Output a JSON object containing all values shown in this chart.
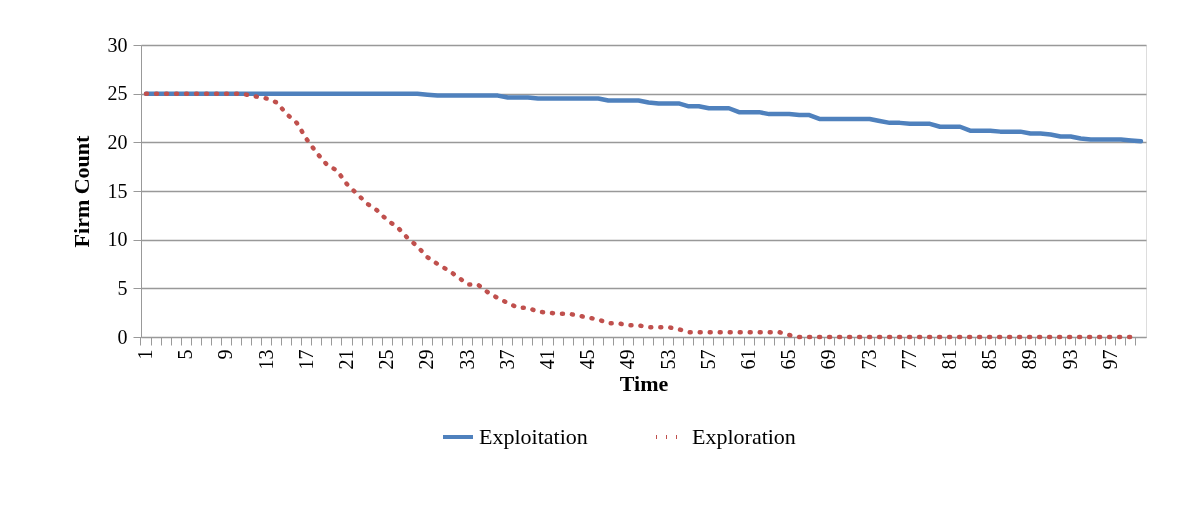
{
  "chart_data": {
    "type": "line",
    "xlabel": "Time",
    "ylabel": "Firm Count",
    "categories": [
      "1",
      null,
      null,
      null,
      "5",
      null,
      null,
      null,
      "9",
      null,
      null,
      null,
      "13",
      null,
      null,
      null,
      "17",
      null,
      null,
      null,
      "21",
      null,
      null,
      null,
      "25",
      null,
      null,
      null,
      "29",
      null,
      null,
      null,
      "33",
      null,
      null,
      null,
      "37",
      null,
      null,
      null,
      "41",
      null,
      null,
      null,
      "45",
      null,
      null,
      null,
      "49",
      null,
      null,
      null,
      "53",
      null,
      null,
      null,
      "57",
      null,
      null,
      null,
      "61",
      null,
      null,
      null,
      "65",
      null,
      null,
      null,
      "69",
      null,
      null,
      null,
      "73",
      null,
      null,
      null,
      "77",
      null,
      null,
      null,
      "81",
      null,
      null,
      null,
      "85",
      null,
      null,
      null,
      "89",
      null,
      null,
      null,
      "93",
      null,
      null,
      null,
      "97",
      null,
      null,
      null
    ],
    "series": [
      {
        "name": "Exploitation",
        "color": "#4f81bd",
        "line_style": "solid",
        "values": [
          25,
          25,
          25,
          25,
          25,
          25,
          25,
          25,
          25,
          25,
          25,
          25,
          25,
          25,
          25,
          25,
          25,
          25,
          25,
          25,
          25,
          25,
          25,
          25,
          25,
          25,
          25,
          25,
          24.9,
          24.8,
          24.8,
          24.8,
          24.8,
          24.8,
          24.8,
          24.8,
          24.6,
          24.6,
          24.6,
          24.5,
          24.5,
          24.5,
          24.5,
          24.5,
          24.5,
          24.5,
          24.3,
          24.3,
          24.3,
          24.3,
          24.1,
          24.0,
          24.0,
          24.0,
          23.7,
          23.7,
          23.5,
          23.5,
          23.5,
          23.1,
          23.1,
          23.1,
          22.9,
          22.9,
          22.9,
          22.8,
          22.8,
          22.4,
          22.4,
          22.4,
          22.4,
          22.4,
          22.4,
          22.2,
          22.0,
          22.0,
          21.9,
          21.9,
          21.9,
          21.6,
          21.6,
          21.6,
          21.2,
          21.2,
          21.2,
          21.1,
          21.1,
          21.1,
          20.9,
          20.9,
          20.8,
          20.6,
          20.6,
          20.4,
          20.3,
          20.3,
          20.3,
          20.3,
          20.2,
          20.1
        ]
      },
      {
        "name": "Exploration",
        "color": "#c0504d",
        "line_style": "dotted",
        "values": [
          25,
          25,
          25,
          25,
          25,
          25,
          25,
          25,
          25,
          25,
          24.9,
          24.7,
          24.5,
          24.1,
          22.9,
          22.0,
          20.3,
          18.9,
          17.7,
          17.1,
          15.7,
          14.7,
          13.7,
          13.0,
          12.0,
          11.3,
          10.2,
          9.3,
          8.2,
          7.5,
          6.9,
          6.2,
          5.4,
          5.4,
          4.6,
          4.0,
          3.5,
          3.0,
          3.0,
          2.6,
          2.5,
          2.4,
          2.4,
          2.2,
          2.0,
          1.8,
          1.4,
          1.4,
          1.2,
          1.2,
          1.0,
          1.0,
          1.0,
          0.8,
          0.5,
          0.5,
          0.5,
          0.5,
          0.5,
          0.5,
          0.5,
          0.5,
          0.5,
          0.5,
          0.2,
          0,
          0,
          0,
          0,
          0,
          0,
          0,
          0,
          0,
          0,
          0,
          0,
          0,
          0,
          0,
          0,
          0,
          0,
          0,
          0,
          0,
          0,
          0,
          0,
          0,
          0,
          0,
          0,
          0,
          0,
          0,
          0,
          0,
          0,
          null
        ]
      }
    ],
    "ylim": [
      0,
      30
    ],
    "yticks": [
      0,
      5,
      10,
      15,
      20,
      25,
      30
    ],
    "grid": "y",
    "legend": "bottom",
    "marker": "none"
  }
}
